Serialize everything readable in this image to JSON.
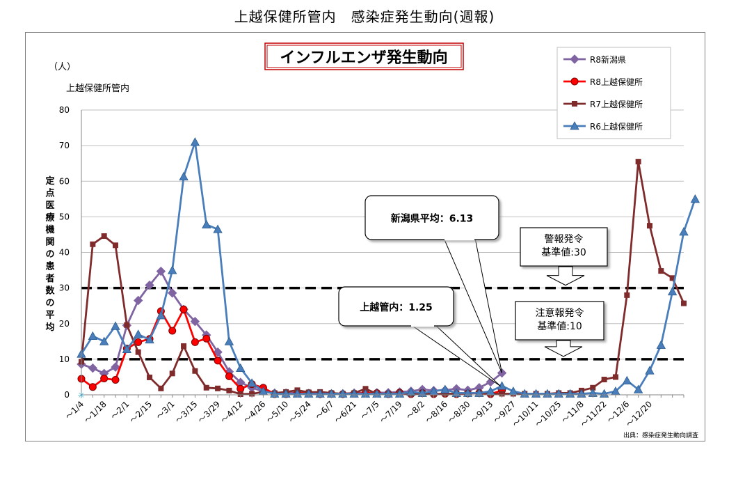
{
  "page_title": "上越保健所管内　感染症発生動向(週報)",
  "chart_data": {
    "type": "line",
    "title": "インフルエンザ発生動向",
    "ylabel": "定点医療機関の患者数の平均",
    "y_unit": "（人）",
    "y_sublabel": "上越保健所管内",
    "ylim": [
      0,
      80
    ],
    "yticks": [
      "0",
      "10",
      "20",
      "30",
      "40",
      "50",
      "60",
      "70",
      "80"
    ],
    "x_labels": [
      "～1/4",
      "～1/18",
      "～2/1",
      "～2/15",
      "～3/1",
      "～3/15",
      "～3/29",
      "～4/12",
      "～4/26",
      "～5/10",
      "～5/24",
      "～6/7",
      "～6/21",
      "～7/5",
      "～7/19",
      "～8/2",
      "～8/16",
      "～8/30",
      "～9/13",
      "～9/27",
      "～10/11",
      "～10/25",
      "～11/8",
      "～11/22",
      "～12/6",
      "～12/20"
    ],
    "grid": true,
    "legend_position": "top-right",
    "source_note": "出典：感染症発生動向調査",
    "thresholds": [
      {
        "value": 30,
        "label": "警報発令\n基準値:30"
      },
      {
        "value": 10,
        "label": "注意報発令\n基準値:10"
      }
    ],
    "callouts": [
      {
        "text": "新潟県平均：6.13"
      },
      {
        "text": "上越管内：1.25"
      }
    ],
    "series": [
      {
        "name": "R8新潟県",
        "color": "#8064a2",
        "marker": "diamond",
        "values": [
          8.6,
          7.5,
          6.0,
          7.8,
          19.5,
          26.5,
          30.8,
          34.7,
          28.6,
          24.0,
          20.6,
          16.8,
          12.0,
          6.5,
          3.5,
          2.0,
          1.0,
          0.5,
          0.5,
          0.5,
          0.4,
          0.3,
          0.3,
          0.3,
          0.5,
          0.5,
          0.6,
          0.6,
          0.8,
          1.0,
          1.5,
          1.2,
          1.3,
          1.7,
          1.3,
          2.0,
          3.6,
          6.13
        ]
      },
      {
        "name": "R8上越保健所",
        "color": "#ff0000",
        "marker": "circle",
        "values": [
          4.5,
          2.2,
          4.6,
          4.2,
          13.0,
          14.8,
          15.7,
          23.5,
          18.0,
          24.0,
          14.8,
          15.8,
          9.6,
          5.2,
          1.7,
          3.0,
          2.0,
          0.2,
          0.2,
          0.5,
          0.5,
          0.2,
          0.3,
          0.2,
          0.3,
          0.5,
          0.5,
          0.2,
          0.6,
          0.2,
          0.5,
          0.2,
          0.3,
          0.2,
          0.4,
          0.5,
          0.2,
          1.25
        ]
      },
      {
        "name": "R7上越保健所",
        "color": "#7f2b2b",
        "marker": "square",
        "values": [
          9.3,
          42.3,
          44.6,
          42.0,
          19.6,
          12.0,
          4.9,
          1.8,
          6.0,
          13.7,
          6.7,
          2.0,
          1.8,
          1.2,
          0.2,
          0.3,
          0.8,
          0.5,
          0.8,
          1.3,
          0.7,
          0.8,
          0.5,
          0.3,
          0.5,
          1.7,
          0.3,
          0.3,
          0.5,
          0.2,
          0.4,
          0.2,
          0.3,
          0.3,
          0.5,
          0.5,
          0.3,
          0.3,
          0.3,
          0.3,
          0.3,
          0.3,
          0.5,
          0.5,
          1.2,
          2.0,
          4.3,
          5.0,
          28.0,
          65.5,
          47.5,
          34.8,
          32.8,
          25.7
        ]
      },
      {
        "name": "R6上越保健所",
        "color": "#4a7ebb",
        "marker": "triangle",
        "values": [
          11.5,
          16.5,
          15.0,
          19.3,
          12.8,
          17.0,
          15.5,
          22.3,
          35.0,
          61.3,
          71.0,
          47.8,
          46.5,
          15.0,
          7.5,
          3.3,
          1.0,
          0.3,
          0.3,
          0.3,
          0.3,
          0.3,
          0.3,
          0.3,
          0.3,
          0.3,
          0.3,
          0.3,
          0.3,
          0.8,
          0.5,
          1.0,
          1.5,
          0.5,
          0.5,
          0.5,
          1.0,
          2.5,
          1.0,
          0.3,
          0.3,
          0.3,
          0.3,
          0.3,
          0.3,
          0.5,
          0.3,
          1.0,
          4.0,
          1.5,
          6.8,
          14.0,
          29.0,
          45.8,
          55.0
        ]
      }
    ]
  }
}
